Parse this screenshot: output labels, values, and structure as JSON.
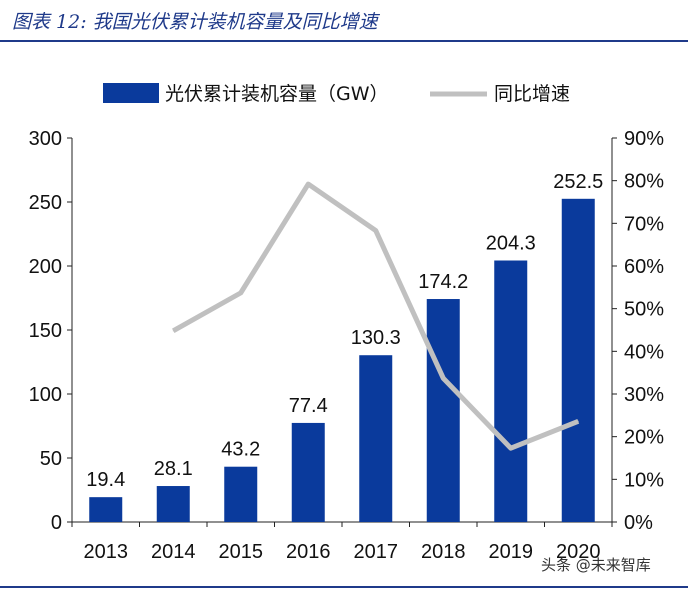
{
  "figure_title": "图表 12:  我国光伏累计装机容量及同比增速",
  "watermark": "头条 @未来智库",
  "colors": {
    "bar": "#0a3a9c",
    "line": "#c0c0c0",
    "title": "#1f3a8a",
    "axis": "#222222"
  },
  "chart_data": {
    "type": "bar",
    "title": "",
    "categories": [
      "2013",
      "2014",
      "2015",
      "2016",
      "2017",
      "2018",
      "2019",
      "2020"
    ],
    "series": [
      {
        "name": "光伏累计装机容量（GW）",
        "type": "bar",
        "axis": "left",
        "values": [
          19.4,
          28.1,
          43.2,
          77.4,
          130.3,
          174.2,
          204.3,
          252.5
        ],
        "data_labels": [
          "19.4",
          "28.1",
          "43.2",
          "77.4",
          "130.3",
          "174.2",
          "204.3",
          "252.5"
        ]
      },
      {
        "name": "同比增速",
        "type": "line",
        "axis": "right",
        "values": [
          null,
          44.8,
          53.7,
          79.2,
          68.3,
          33.7,
          17.3,
          23.6
        ]
      }
    ],
    "y_left": {
      "min": 0,
      "max": 300,
      "step": 50,
      "ticks": [
        "0",
        "50",
        "100",
        "150",
        "200",
        "250",
        "300"
      ]
    },
    "y_right": {
      "min": 0,
      "max": 90,
      "step": 10,
      "ticks": [
        "0%",
        "10%",
        "20%",
        "30%",
        "40%",
        "50%",
        "60%",
        "70%",
        "80%",
        "90%"
      ]
    },
    "legend_position": "top",
    "grid": false
  }
}
